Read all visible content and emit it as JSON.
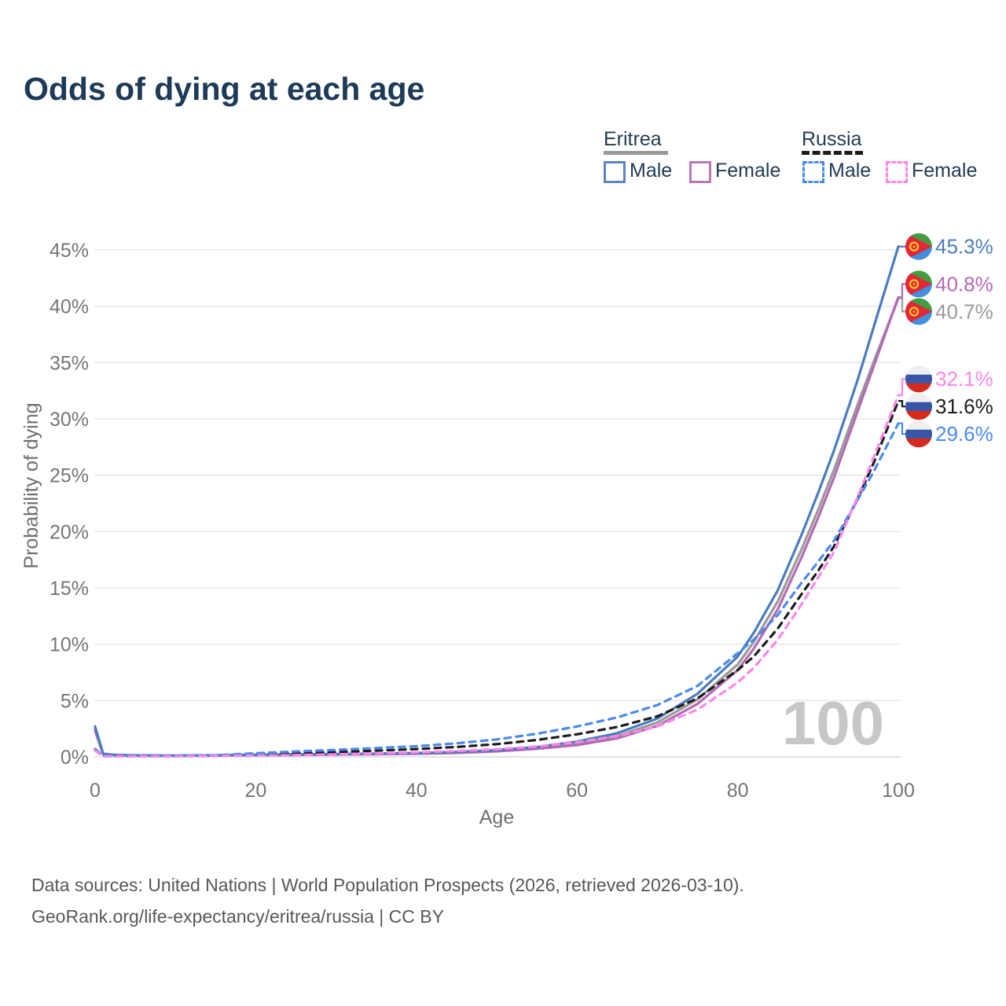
{
  "title": "Odds of dying at each age",
  "legend": {
    "groups": [
      {
        "label": "Eritrea",
        "style": "solid",
        "color": "#9a9a9a"
      },
      {
        "label": "Russia",
        "style": "dashed",
        "color": "#1c1c1c"
      }
    ],
    "items": [
      {
        "country": "Eritrea",
        "label": "Male",
        "style": "solid",
        "color": "#4a7cbe"
      },
      {
        "country": "Eritrea",
        "label": "Female",
        "style": "solid",
        "color": "#b36ab4"
      },
      {
        "country": "Russia",
        "label": "Male",
        "style": "dashed",
        "color": "#4a8af0"
      },
      {
        "country": "Russia",
        "label": "Female",
        "style": "dashed",
        "color": "#ff85ec"
      }
    ]
  },
  "chart_data": {
    "type": "line",
    "title": "Odds of dying at each age",
    "xlabel": "Age",
    "ylabel": "Probability of dying",
    "xlim": [
      0,
      100
    ],
    "ylim_pct": [
      0,
      45
    ],
    "xticks": [
      0,
      20,
      40,
      60,
      80,
      100
    ],
    "yticks_pct": [
      0,
      5,
      10,
      15,
      20,
      25,
      30,
      35,
      40,
      45
    ],
    "grid": true,
    "legend_position": "top-right",
    "watermark": "100",
    "ages": [
      0,
      1,
      2,
      3,
      5,
      10,
      15,
      20,
      25,
      30,
      35,
      40,
      45,
      50,
      55,
      60,
      65,
      70,
      75,
      80,
      82,
      85,
      88,
      90,
      92,
      95,
      97,
      100
    ],
    "series": [
      {
        "name": "Eritrea Total",
        "country": "Eritrea",
        "sex": "total",
        "color": "#9a9a9a",
        "dash": false,
        "flag": "eritrea-flag-icon",
        "end_label": "40.7%",
        "label_color": "#9a9a9a",
        "values_pct": [
          2.5,
          0.26,
          0.18,
          0.15,
          0.12,
          0.1,
          0.13,
          0.17,
          0.19,
          0.22,
          0.26,
          0.31,
          0.39,
          0.54,
          0.79,
          1.2,
          1.85,
          3.05,
          5.1,
          8.2,
          10.2,
          13.8,
          18.5,
          21.9,
          25.5,
          31.4,
          35.2,
          40.7
        ]
      },
      {
        "name": "Eritrea Female",
        "country": "Eritrea",
        "sex": "female",
        "color": "#b36ab4",
        "dash": false,
        "flag": "eritrea-flag-icon",
        "end_label": "40.8%",
        "label_color": "#b36ab4",
        "values_pct": [
          2.3,
          0.24,
          0.17,
          0.14,
          0.11,
          0.09,
          0.12,
          0.15,
          0.17,
          0.2,
          0.23,
          0.28,
          0.35,
          0.49,
          0.71,
          1.05,
          1.65,
          2.75,
          4.7,
          7.7,
          9.6,
          13.1,
          17.8,
          21.2,
          24.8,
          30.8,
          34.8,
          40.8
        ]
      },
      {
        "name": "Eritrea Male",
        "country": "Eritrea",
        "sex": "male",
        "color": "#4a7cbe",
        "dash": false,
        "flag": "eritrea-flag-icon",
        "end_label": "45.3%",
        "label_color": "#4a7cbe",
        "values_pct": [
          2.7,
          0.28,
          0.2,
          0.17,
          0.13,
          0.11,
          0.14,
          0.19,
          0.22,
          0.25,
          0.29,
          0.34,
          0.43,
          0.6,
          0.88,
          1.35,
          2.1,
          3.4,
          5.6,
          8.9,
          11.0,
          14.8,
          19.8,
          23.4,
          27.2,
          33.6,
          38.3,
          45.3
        ]
      },
      {
        "name": "Russia Total",
        "country": "Russia",
        "sex": "total",
        "color": "#1c1c1c",
        "dash": true,
        "flag": "russia-flag-icon",
        "end_label": "31.6%",
        "label_color": "#1c1c1c",
        "values_pct": [
          0.63,
          0.06,
          0.045,
          0.045,
          0.045,
          0.06,
          0.11,
          0.22,
          0.33,
          0.43,
          0.55,
          0.69,
          0.88,
          1.13,
          1.5,
          2.0,
          2.65,
          3.6,
          5.2,
          7.7,
          8.9,
          11.4,
          14.5,
          16.5,
          18.7,
          23.0,
          26.2,
          31.6
        ]
      },
      {
        "name": "Russia Male",
        "country": "Russia",
        "sex": "male",
        "color": "#4a8af0",
        "dash": true,
        "flag": "russia-flag-icon",
        "end_label": "29.6%",
        "label_color": "#4a8af0",
        "values_pct": [
          0.7,
          0.07,
          0.05,
          0.05,
          0.05,
          0.07,
          0.14,
          0.32,
          0.48,
          0.62,
          0.78,
          0.95,
          1.2,
          1.55,
          2.05,
          2.7,
          3.5,
          4.6,
          6.3,
          9.2,
          10.4,
          12.6,
          15.5,
          17.3,
          19.2,
          22.9,
          25.4,
          29.6
        ]
      },
      {
        "name": "Russia Female",
        "country": "Russia",
        "sex": "female",
        "color": "#ff85ec",
        "dash": true,
        "flag": "russia-flag-icon",
        "end_label": "32.1%",
        "label_color": "#ff85ec",
        "values_pct": [
          0.55,
          0.05,
          0.04,
          0.04,
          0.04,
          0.05,
          0.08,
          0.12,
          0.16,
          0.22,
          0.3,
          0.4,
          0.52,
          0.68,
          0.92,
          1.3,
          1.85,
          2.7,
          4.2,
          6.6,
          7.9,
          10.4,
          13.6,
          15.9,
          18.2,
          23.2,
          26.7,
          32.1
        ]
      }
    ]
  },
  "footer": {
    "line1": "Data sources: United Nations | World Population Prospects (2026, retrieved 2026-03-10).",
    "line2": "GeoRank.org/life-expectancy/eritrea/russia | CC BY"
  }
}
